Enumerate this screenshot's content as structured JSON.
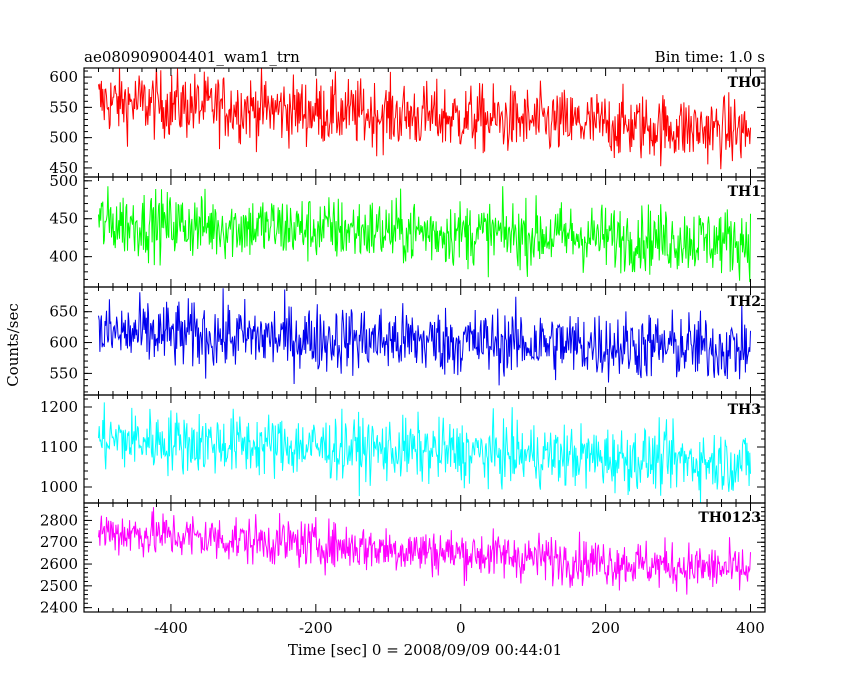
{
  "header": {
    "title": "ae080909004401_wam1_trn",
    "bin_time": "Bin time: 1.0 s"
  },
  "ylabel": "Counts/sec",
  "xlabel": "Time [sec] 0 = 2008/09/09 00:44:01",
  "chart_data": {
    "type": "line",
    "x_range": [
      -520,
      420
    ],
    "x_ticks": [
      -400,
      -200,
      0,
      200,
      400
    ],
    "panels": [
      {
        "name": "TH0",
        "color": "#ff0000",
        "ylim": [
          435,
          615
        ],
        "yticks": [
          450,
          500,
          550,
          600
        ],
        "series": {
          "x_start": -500,
          "x_end": 400,
          "trend": [
            560,
            510
          ],
          "noise": 28
        }
      },
      {
        "name": "TH1",
        "color": "#00ff00",
        "ylim": [
          360,
          505
        ],
        "yticks": [
          400,
          450,
          500
        ],
        "series": {
          "x_start": -500,
          "x_end": 400,
          "trend": [
            445,
            420
          ],
          "noise": 22
        }
      },
      {
        "name": "TH2",
        "color": "#0000ee",
        "ylim": [
          515,
          690
        ],
        "yticks": [
          550,
          600,
          650
        ],
        "series": {
          "x_start": -500,
          "x_end": 400,
          "trend": [
            615,
            590
          ],
          "noise": 28
        }
      },
      {
        "name": "TH3",
        "color": "#00ffff",
        "ylim": [
          960,
          1230
        ],
        "yticks": [
          1000,
          1100,
          1200
        ],
        "series": {
          "x_start": -500,
          "x_end": 400,
          "trend": [
            1120,
            1060
          ],
          "noise": 40
        }
      },
      {
        "name": "TH0123",
        "color": "#ff00ff",
        "ylim": [
          2380,
          2880
        ],
        "yticks": [
          2400,
          2500,
          2600,
          2700,
          2800
        ],
        "series": {
          "x_start": -500,
          "x_end": 400,
          "trend": [
            2750,
            2570
          ],
          "noise": 55
        }
      }
    ]
  }
}
